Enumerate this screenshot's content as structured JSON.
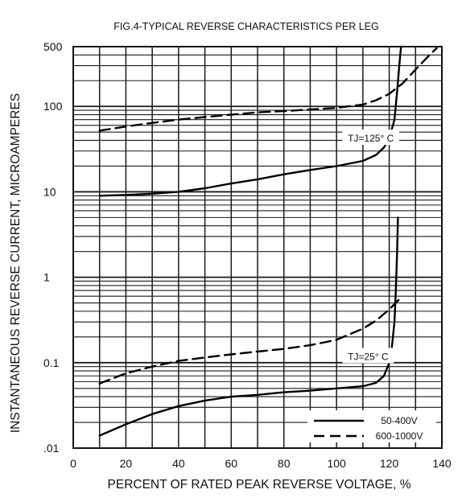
{
  "chart_data": {
    "type": "line",
    "title": "FIG.4-TYPICAL REVERSE CHARACTERISTICS PER LEG",
    "xlabel": "PERCENT OF RATED PEAK REVERSE VOLTAGE, %",
    "ylabel": "INSTANTANEOUS REVERSE CURRENT, MICROAMPERES",
    "xlim": [
      0,
      140
    ],
    "ylim": [
      0.01,
      500
    ],
    "yscale": "log",
    "grid": true,
    "legend_position": "bottom-right",
    "x_ticks": [
      "0",
      "20",
      "40",
      "60",
      "80",
      "100",
      "120",
      "140"
    ],
    "y_ticks": [
      {
        "value": 500,
        "label": "500"
      },
      {
        "value": 100,
        "label": "100"
      },
      {
        "value": 10,
        "label": "10"
      },
      {
        "value": 1,
        "label": "1"
      },
      {
        "value": 0.1,
        "label": "0.1"
      },
      {
        "value": 0.01,
        "label": ".01"
      }
    ],
    "annotations": [
      {
        "text": "TJ=125° C",
        "x": 113,
        "y": 43
      },
      {
        "text": "TJ=25° C",
        "x": 112,
        "y": 0.12
      }
    ],
    "legend": [
      {
        "label": "50-400V",
        "style": "solid"
      },
      {
        "label": "600-1000V",
        "style": "dashed"
      }
    ],
    "series": [
      {
        "name": "50-400V",
        "condition": "TJ=125° C",
        "style": "solid",
        "x": [
          10,
          20,
          30,
          40,
          50,
          60,
          70,
          80,
          90,
          100,
          110,
          115,
          118,
          120,
          122,
          123,
          124,
          124.5
        ],
        "y": [
          9,
          9.2,
          9.5,
          10,
          11,
          12.5,
          14,
          16,
          18,
          20,
          23,
          27,
          33,
          42,
          70,
          150,
          350,
          500
        ]
      },
      {
        "name": "600-1000V",
        "condition": "TJ=125° C",
        "style": "dashed",
        "x": [
          10,
          20,
          30,
          40,
          50,
          60,
          70,
          80,
          90,
          100,
          110,
          115,
          120,
          125,
          130,
          135,
          138
        ],
        "y": [
          52,
          58,
          64,
          70,
          75,
          80,
          85,
          88,
          92,
          96,
          105,
          118,
          140,
          185,
          270,
          390,
          480
        ]
      },
      {
        "name": "50-400V",
        "condition": "TJ=25° C",
        "style": "solid",
        "x": [
          10,
          20,
          30,
          40,
          50,
          60,
          70,
          80,
          90,
          100,
          110,
          115,
          118,
          120,
          121,
          122,
          122.5,
          123,
          123.3
        ],
        "y": [
          0.014,
          0.019,
          0.025,
          0.031,
          0.036,
          0.04,
          0.042,
          0.045,
          0.047,
          0.05,
          0.053,
          0.058,
          0.07,
          0.1,
          0.15,
          0.3,
          0.7,
          2,
          5
        ]
      },
      {
        "name": "600-1000V",
        "condition": "TJ=25° C",
        "style": "dashed",
        "x": [
          10,
          20,
          30,
          40,
          50,
          60,
          70,
          80,
          90,
          100,
          110,
          115,
          120,
          125
        ],
        "y": [
          0.057,
          0.075,
          0.09,
          0.105,
          0.115,
          0.125,
          0.135,
          0.145,
          0.16,
          0.185,
          0.25,
          0.31,
          0.42,
          0.6
        ]
      }
    ]
  }
}
